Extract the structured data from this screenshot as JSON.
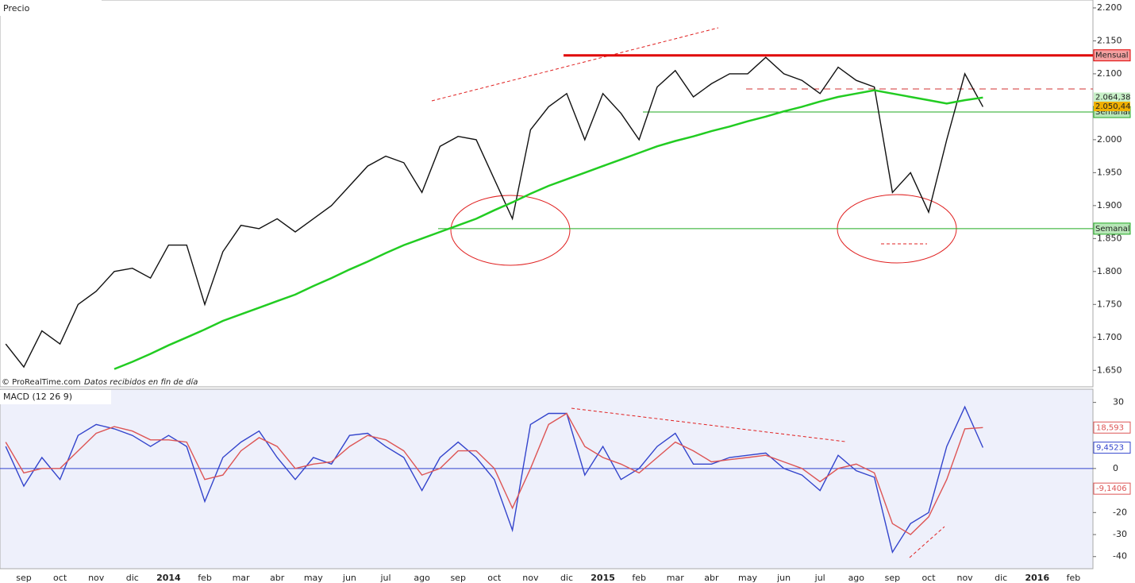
{
  "panel_labels": {
    "price": "Precio",
    "macd": "MACD (12 26 9)",
    "source": "© ProRealTime.com",
    "note": "Datos recibidos en fin de día"
  },
  "chart_data": [
    {
      "type": "line",
      "categories": [
        null,
        "sep",
        null,
        "oct",
        null,
        "nov",
        null,
        "dic",
        null,
        "2014",
        null,
        "feb",
        null,
        "mar",
        null,
        "abr",
        null,
        "may",
        null,
        "jun",
        null,
        "jul",
        null,
        "ago",
        null,
        "sep",
        null,
        "oct",
        null,
        "nov",
        null,
        "dic",
        null,
        "2015",
        null,
        "feb",
        null,
        "mar",
        null,
        "abr",
        null,
        "may",
        null,
        "jun",
        null,
        "jul",
        null,
        "ago",
        null,
        "sep",
        null,
        "oct",
        null,
        "nov",
        null,
        "dic",
        null,
        "2016",
        null,
        "feb"
      ],
      "series": [
        {
          "color": "#111111",
          "values": [
            1690,
            1655,
            1710,
            1690,
            1750,
            1770,
            1800,
            1805,
            1790,
            1840,
            1840,
            1750,
            1830,
            1870,
            1865,
            1880,
            1860,
            1880,
            1900,
            1930,
            1960,
            1975,
            1965,
            1920,
            1990,
            2005,
            2000,
            1940,
            1880,
            2015,
            2050,
            2070,
            2000,
            2070,
            2040,
            2000,
            2080,
            2105,
            2065,
            2085,
            2100,
            2100,
            2125,
            2100,
            2090,
            2070,
            2110,
            2090,
            2080,
            1920,
            1950,
            1890,
            2000,
            2100,
            2050,
            null,
            null,
            null,
            null,
            null
          ]
        },
        {
          "color": "#22cc22",
          "values": [
            null,
            null,
            null,
            null,
            null,
            null,
            1652,
            1663,
            1675,
            1688,
            1700,
            1712,
            1725,
            1735,
            1745,
            1755,
            1765,
            1778,
            1790,
            1803,
            1815,
            1828,
            1840,
            1850,
            1860,
            1870,
            1880,
            1893,
            1905,
            1918,
            1930,
            1940,
            1950,
            1960,
            1970,
            1980,
            1990,
            1998,
            2005,
            2013,
            2020,
            2028,
            2035,
            2043,
            2050,
            2058,
            2065,
            2070,
            2075,
            2070,
            2065,
            2060,
            2055,
            2060,
            2064,
            null,
            null,
            null,
            null,
            null
          ]
        }
      ],
      "ylim": [
        1625,
        2212
      ],
      "yticks": [
        {
          "value": 1650,
          "label": "1.650"
        },
        {
          "value": 1700,
          "label": "1.700"
        },
        {
          "value": 1750,
          "label": "1.750"
        },
        {
          "value": 1800,
          "label": "1.800"
        },
        {
          "value": 1850,
          "label": "1.850"
        },
        {
          "value": 1900,
          "label": "1.900"
        },
        {
          "value": 1950,
          "label": "1.950"
        },
        {
          "value": 2000,
          "label": "2.000"
        },
        {
          "value": 2050,
          "label": "2.050"
        },
        {
          "value": 2100,
          "label": "2.100"
        },
        {
          "value": 2150,
          "label": "2.150"
        },
        {
          "value": 2200,
          "label": "2.200"
        }
      ],
      "levels": [
        {
          "value": 2128,
          "label": "Mensual",
          "color": "#e00000"
        },
        {
          "value": 2042,
          "label": "Semanal",
          "color": "#22aa22"
        },
        {
          "value": 1865,
          "label": "Semanal",
          "color": "#22aa22"
        },
        {
          "value": 2077,
          "color": "#d03030",
          "dashed": true
        }
      ],
      "price_labels": [
        {
          "value": 2064.38,
          "label": "2.064,38",
          "color": "#c8f0c8"
        },
        {
          "value": 2050.44,
          "label": "2.050,44",
          "color": "#f0b000"
        }
      ]
    },
    {
      "type": "line",
      "series": [
        {
          "color": "#3344cc",
          "values": [
            10,
            -8,
            5,
            -5,
            15,
            20,
            18,
            15,
            10,
            15,
            10,
            -15,
            5,
            12,
            17,
            5,
            -5,
            5,
            2,
            15,
            16,
            10,
            5,
            -10,
            5,
            12,
            5,
            -5,
            -28,
            20,
            25,
            25,
            -3,
            10,
            -5,
            0,
            10,
            16,
            2,
            2,
            5,
            6,
            7,
            0,
            -3,
            -10,
            6,
            -1,
            -4,
            -38,
            -25,
            -20,
            10,
            28,
            9.5,
            null,
            null,
            null,
            null,
            null
          ]
        },
        {
          "color": "#dd5555",
          "values": [
            12,
            -2,
            0,
            0,
            8,
            16,
            19,
            17,
            13,
            13,
            12,
            -5,
            -3,
            8,
            14,
            10,
            0,
            2,
            3,
            10,
            15,
            13,
            8,
            -3,
            0,
            8,
            8,
            0,
            -18,
            0,
            20,
            25,
            10,
            5,
            2,
            -2,
            5,
            12,
            8,
            3,
            4,
            5,
            6,
            3,
            0,
            -6,
            0,
            2,
            -2,
            -25,
            -30,
            -22,
            -5,
            18,
            18.6,
            null,
            null,
            null,
            null,
            null
          ]
        }
      ],
      "ylim": [
        -45.5,
        36
      ],
      "yticks": [
        -40,
        -30,
        -20,
        0,
        30
      ],
      "value_labels": [
        {
          "value": 18.593,
          "label": "18,593",
          "color": "#dd5555"
        },
        {
          "value": 9.4523,
          "label": "9,4523",
          "color": "#3344cc"
        },
        {
          "value": -9.1406,
          "label": "-9,1406",
          "color": "#dd5555"
        }
      ]
    }
  ]
}
